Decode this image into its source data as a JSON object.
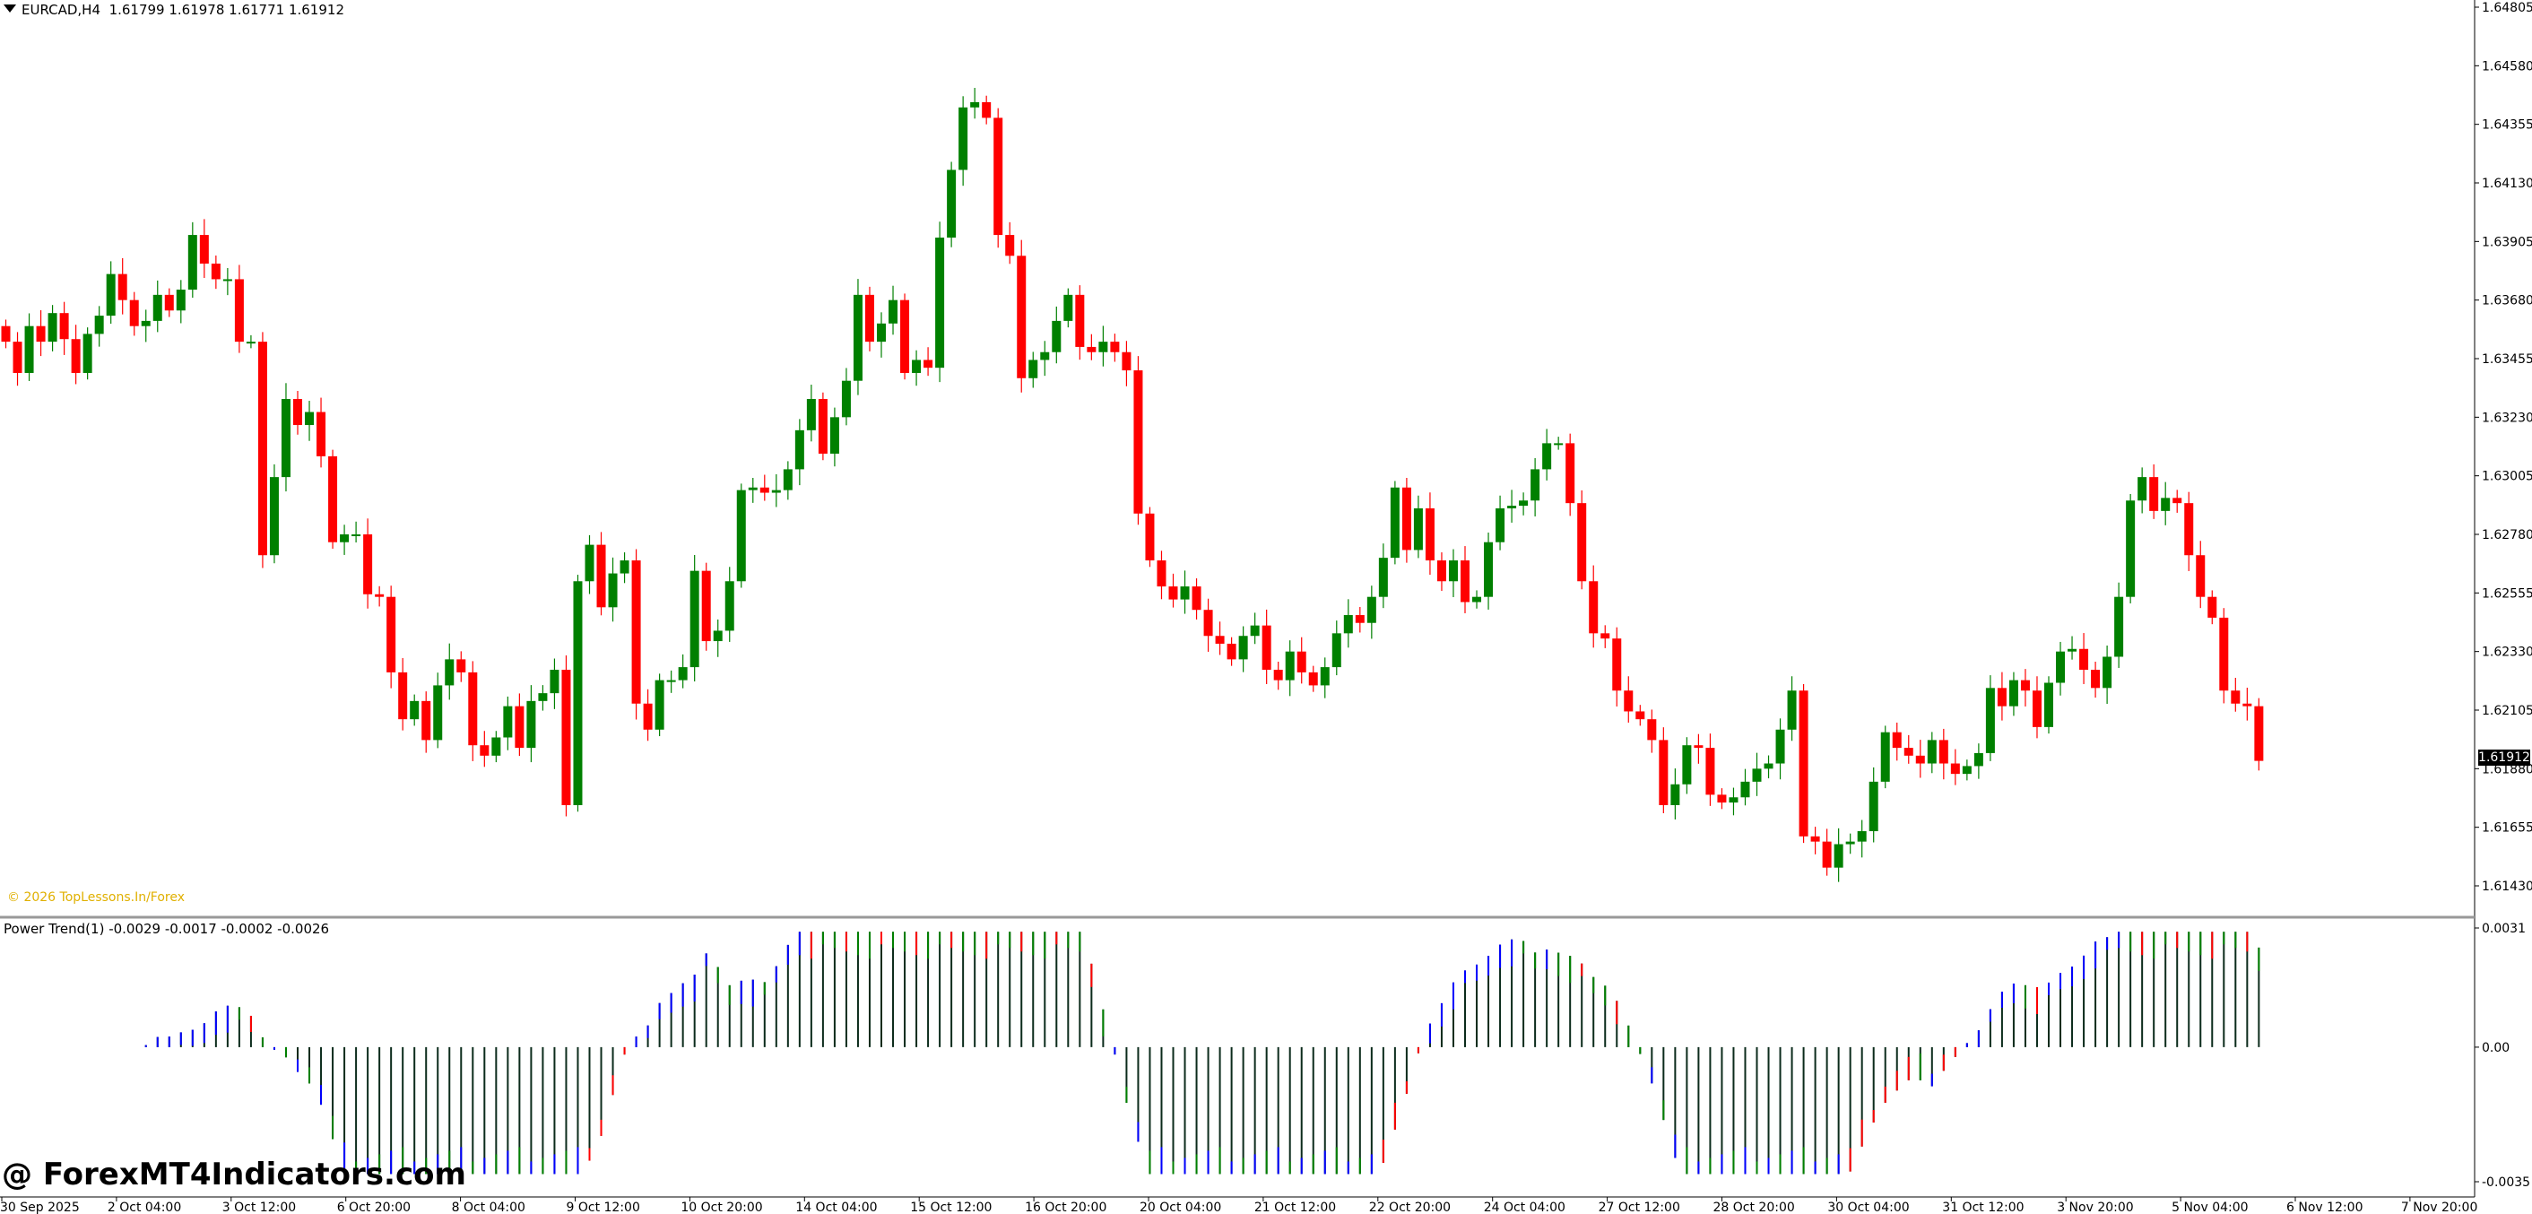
{
  "header": {
    "symbol": "EURCAD,H4",
    "ohlc": "1.61799 1.61978 1.61771 1.61912"
  },
  "indicator": {
    "label": "Power Trend(1) -0.0029 -0.0017 -0.0002 -0.0026"
  },
  "copyright": "© 2026 TopLessons.In/Forex",
  "watermark": "@ ForexMT4Indicators.com",
  "current_price_tag": "1.61912",
  "colors": {
    "bull": "#008000",
    "bear": "#ff0000",
    "hist_green": "#008000",
    "hist_red": "#ff0000",
    "hist_blue": "#0000ff",
    "hist_dark": "#0b2b1b",
    "copyright": "#e0b000"
  },
  "chart_data": [
    {
      "type": "candlestick",
      "title": "EURCAD,H4",
      "ylim": [
        1.6143,
        1.64805
      ],
      "price_ticks": [
        "1.64805",
        "1.64580",
        "1.64355",
        "1.64130",
        "1.63905",
        "1.63680",
        "1.63455",
        "1.63230",
        "1.63005",
        "1.62780",
        "1.62555",
        "1.62330",
        "1.62105",
        "1.61880",
        "1.61655",
        "1.61430"
      ],
      "x_ticks": [
        "30 Sep 2025",
        "2 Oct 04:00",
        "3 Oct 12:00",
        "6 Oct 20:00",
        "8 Oct 04:00",
        "9 Oct 12:00",
        "10 Oct 20:00",
        "14 Oct 04:00",
        "15 Oct 12:00",
        "16 Oct 20:00",
        "20 Oct 04:00",
        "21 Oct 12:00",
        "22 Oct 20:00",
        "24 Oct 04:00",
        "27 Oct 12:00",
        "28 Oct 20:00",
        "30 Oct 04:00",
        "31 Oct 12:00",
        "3 Nov 20:00",
        "5 Nov 04:00",
        "6 Nov 12:00",
        "7 Nov 20:00"
      ],
      "closes": [
        1.6352,
        1.634,
        1.6358,
        1.6352,
        1.6363,
        1.6353,
        1.634,
        1.6355,
        1.6362,
        1.6378,
        1.6368,
        1.6358,
        1.636,
        1.637,
        1.6364,
        1.6372,
        1.6393,
        1.6382,
        1.6376,
        1.6376,
        1.6352,
        1.6352,
        1.627,
        1.63,
        1.633,
        1.632,
        1.6325,
        1.6308,
        1.6275,
        1.6278,
        1.6278,
        1.6255,
        1.6254,
        1.6225,
        1.6207,
        1.6214,
        1.6199,
        1.622,
        1.623,
        1.6225,
        1.6197,
        1.6193,
        1.62,
        1.6212,
        1.6196,
        1.6214,
        1.6217,
        1.6226,
        1.6174,
        1.626,
        1.6274,
        1.625,
        1.6263,
        1.6268,
        1.6213,
        1.6203,
        1.6222,
        1.6222,
        1.6227,
        1.6264,
        1.6237,
        1.6241,
        1.626,
        1.6295,
        1.6296,
        1.6294,
        1.6295,
        1.6303,
        1.6318,
        1.633,
        1.6309,
        1.6323,
        1.6337,
        1.637,
        1.6352,
        1.6359,
        1.6368,
        1.634,
        1.6345,
        1.6342,
        1.6392,
        1.6418,
        1.6442,
        1.6444,
        1.6438,
        1.6393,
        1.6385,
        1.6338,
        1.6345,
        1.6348,
        1.636,
        1.637,
        1.635,
        1.6348,
        1.6352,
        1.6348,
        1.6341,
        1.6286,
        1.6268,
        1.6258,
        1.6253,
        1.6258,
        1.6249,
        1.6239,
        1.6236,
        1.623,
        1.6239,
        1.6243,
        1.6226,
        1.6222,
        1.6233,
        1.6225,
        1.622,
        1.6227,
        1.624,
        1.6247,
        1.6244,
        1.6254,
        1.6269,
        1.6296,
        1.6272,
        1.6288,
        1.6268,
        1.626,
        1.6268,
        1.6252,
        1.6254,
        1.6275,
        1.6288,
        1.6289,
        1.6291,
        1.6303,
        1.6313,
        1.6313,
        1.629,
        1.626,
        1.624,
        1.6238,
        1.6218,
        1.621,
        1.6207,
        1.6199,
        1.6174,
        1.6182,
        1.6197,
        1.6196,
        1.6178,
        1.6175,
        1.6177,
        1.6183,
        1.6188,
        1.619,
        1.6203,
        1.6218,
        1.6162,
        1.616,
        1.615,
        1.6159,
        1.616,
        1.6164,
        1.6183,
        1.6202,
        1.6196,
        1.6193,
        1.619,
        1.6199,
        1.619,
        1.6186,
        1.6189,
        1.6194,
        1.6219,
        1.6212,
        1.6222,
        1.6218,
        1.6204,
        1.6221,
        1.6233,
        1.6234,
        1.6226,
        1.6219,
        1.6231,
        1.6254,
        1.6291,
        1.63,
        1.6287,
        1.6292,
        1.629,
        1.627,
        1.6254,
        1.6246,
        1.6218,
        1.6213,
        1.6212,
        1.6191
      ],
      "last_price": 1.61912
    },
    {
      "type": "bar",
      "title": "Power Trend(1)",
      "values_text": "-0.0029 -0.0017 -0.0002 -0.0026",
      "ylim": [
        -0.0035,
        0.0031
      ],
      "y_ticks": [
        "0.0031",
        "0.00",
        "-0.0035"
      ]
    }
  ]
}
